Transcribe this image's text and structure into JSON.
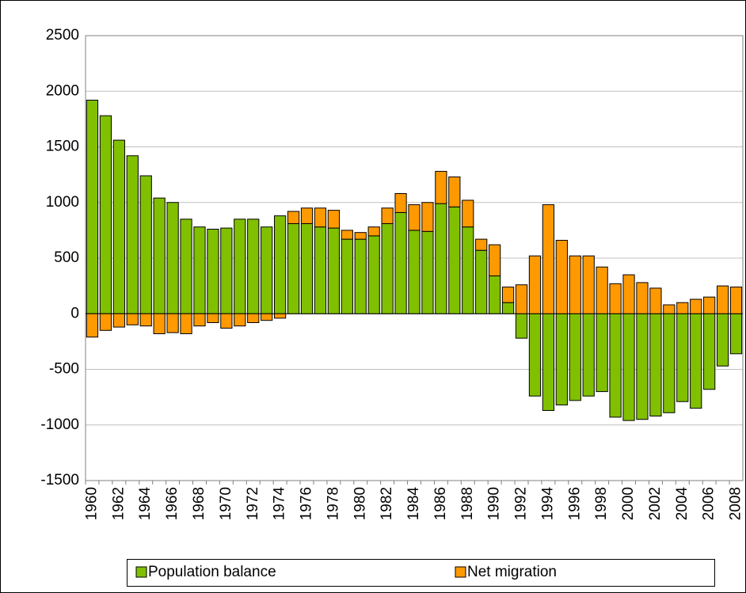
{
  "chart_data": {
    "type": "bar",
    "stacked": true,
    "categories": [
      "1960",
      null,
      "1962",
      null,
      "1964",
      null,
      "1966",
      null,
      "1968",
      null,
      "1970",
      null,
      "1972",
      null,
      "1974",
      null,
      "1976",
      null,
      "1978",
      null,
      "1980",
      null,
      "1982",
      null,
      "1984",
      null,
      "1986",
      null,
      "1988",
      null,
      "1990",
      null,
      "1992",
      null,
      "1994",
      null,
      "1996",
      null,
      "1998",
      null,
      "2000",
      null,
      "2002",
      null,
      "2004",
      null,
      "2006",
      null,
      "2008"
    ],
    "series": [
      {
        "name": "Population balance",
        "color": "#80c000",
        "values": [
          1920,
          1780,
          1560,
          1420,
          1240,
          1040,
          1000,
          850,
          780,
          760,
          770,
          850,
          850,
          780,
          880,
          810,
          810,
          780,
          770,
          670,
          670,
          700,
          810,
          910,
          750,
          740,
          990,
          960,
          780,
          570,
          340,
          100,
          -220,
          -740,
          -870,
          -820,
          -780,
          -740,
          -700,
          -930,
          -960,
          -950,
          -920,
          -890,
          -790,
          -850,
          -680,
          -470,
          -360
        ]
      },
      {
        "name": "Net migration",
        "color": "#ff9900",
        "values": [
          -210,
          -150,
          -120,
          -100,
          -110,
          -180,
          -170,
          -180,
          -110,
          -80,
          -130,
          -110,
          -80,
          -60,
          -40,
          110,
          140,
          170,
          160,
          80,
          60,
          80,
          140,
          170,
          230,
          260,
          290,
          270,
          240,
          100,
          280,
          140,
          260,
          520,
          980,
          660,
          520,
          520,
          420,
          270,
          350,
          280,
          230,
          80,
          100,
          130,
          150,
          250,
          240
        ]
      }
    ],
    "ylim": [
      -1500,
      2500
    ],
    "yticks": [
      -1500,
      -1000,
      -500,
      0,
      500,
      1000,
      1500,
      2000,
      2500
    ],
    "grid": true,
    "legend": "bottom"
  }
}
